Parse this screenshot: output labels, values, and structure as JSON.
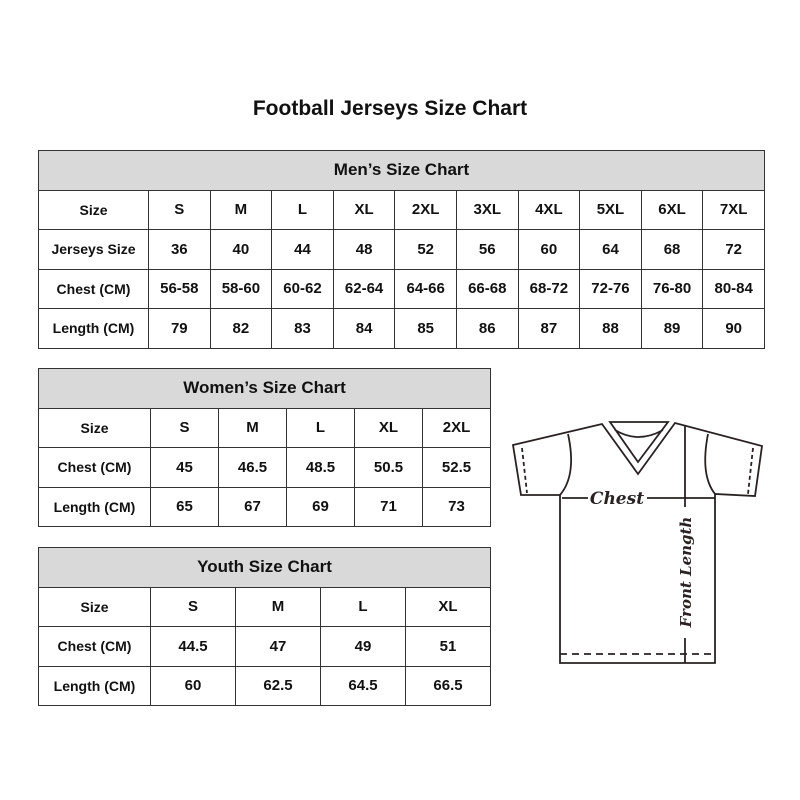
{
  "title": "Football Jerseys Size Chart",
  "men": {
    "heading": "Men’s Size Chart",
    "rows": [
      {
        "label": "Size",
        "values": [
          "S",
          "M",
          "L",
          "XL",
          "2XL",
          "3XL",
          "4XL",
          "5XL",
          "6XL",
          "7XL"
        ]
      },
      {
        "label": "Jerseys Size",
        "values": [
          "36",
          "40",
          "44",
          "48",
          "52",
          "56",
          "60",
          "64",
          "68",
          "72"
        ]
      },
      {
        "label": "Chest (CM)",
        "values": [
          "56-58",
          "58-60",
          "60-62",
          "62-64",
          "64-66",
          "66-68",
          "68-72",
          "72-76",
          "76-80",
          "80-84"
        ]
      },
      {
        "label": "Length (CM)",
        "values": [
          "79",
          "82",
          "83",
          "84",
          "85",
          "86",
          "87",
          "88",
          "89",
          "90"
        ]
      }
    ]
  },
  "women": {
    "heading": "Women’s Size Chart",
    "rows": [
      {
        "label": "Size",
        "values": [
          "S",
          "M",
          "L",
          "XL",
          "2XL"
        ]
      },
      {
        "label": "Chest (CM)",
        "values": [
          "45",
          "46.5",
          "48.5",
          "50.5",
          "52.5"
        ]
      },
      {
        "label": "Length (CM)",
        "values": [
          "65",
          "67",
          "69",
          "71",
          "73"
        ]
      }
    ]
  },
  "youth": {
    "heading": "Youth Size Chart",
    "rows": [
      {
        "label": "Size",
        "values": [
          "S",
          "M",
          "L",
          "XL"
        ]
      },
      {
        "label": "Chest (CM)",
        "values": [
          "44.5",
          "47",
          "49",
          "51"
        ]
      },
      {
        "label": "Length (CM)",
        "values": [
          "60",
          "62.5",
          "64.5",
          "66.5"
        ]
      }
    ]
  },
  "diagram": {
    "chest_label": "Chest",
    "length_label": "Front Length"
  },
  "colors": {
    "header_bg": "#d9d9d9",
    "border": "#333333"
  }
}
